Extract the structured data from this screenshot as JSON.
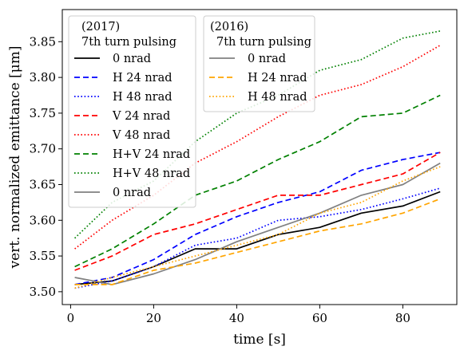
{
  "chart_data": {
    "type": "line",
    "xlabel": "time [s]",
    "ylabel": "vert. normalized emittance [μm]",
    "xlim": [
      -2,
      93
    ],
    "ylim": [
      3.482,
      3.895
    ],
    "xticks": [
      0,
      20,
      40,
      60,
      80
    ],
    "yticks": [
      3.5,
      3.55,
      3.6,
      3.65,
      3.7,
      3.75,
      3.8,
      3.85
    ],
    "grid": false,
    "legends": [
      {
        "title_line1": "(2017)",
        "title_line2": "7th turn pulsing",
        "placement": "top-left"
      },
      {
        "title_line1": "(2016)",
        "title_line2": "7th turn pulsing",
        "placement": "top-center"
      }
    ],
    "series": [
      {
        "name": "0 nrad",
        "group": "2017",
        "color": "#000000",
        "style": "solid",
        "x": [
          1,
          10,
          20,
          30,
          40,
          50,
          60,
          70,
          80,
          89
        ],
        "y": [
          3.51,
          3.515,
          3.535,
          3.56,
          3.56,
          3.58,
          3.59,
          3.61,
          3.62,
          3.64
        ]
      },
      {
        "name": "H 24 nrad",
        "group": "2017",
        "color": "#0000ff",
        "style": "dashed",
        "x": [
          1,
          10,
          20,
          30,
          40,
          50,
          60,
          70,
          80,
          89
        ],
        "y": [
          3.51,
          3.52,
          3.545,
          3.58,
          3.605,
          3.625,
          3.64,
          3.67,
          3.685,
          3.695
        ]
      },
      {
        "name": "H 48 nrad",
        "group": "2017",
        "color": "#0000ff",
        "style": "dotted",
        "x": [
          1,
          10,
          20,
          30,
          40,
          50,
          60,
          70,
          80,
          89
        ],
        "y": [
          3.505,
          3.515,
          3.535,
          3.565,
          3.575,
          3.6,
          3.605,
          3.615,
          3.63,
          3.645
        ]
      },
      {
        "name": "V 24 nrad",
        "group": "2017",
        "color": "#ff0000",
        "style": "dashed",
        "x": [
          1,
          10,
          20,
          30,
          40,
          50,
          60,
          70,
          80,
          89
        ],
        "y": [
          3.53,
          3.55,
          3.58,
          3.595,
          3.615,
          3.635,
          3.635,
          3.65,
          3.665,
          3.695
        ]
      },
      {
        "name": "V 48 nrad",
        "group": "2017",
        "color": "#ff0000",
        "style": "dotted",
        "x": [
          1,
          10,
          20,
          30,
          40,
          50,
          60,
          70,
          80,
          89
        ],
        "y": [
          3.56,
          3.6,
          3.635,
          3.68,
          3.71,
          3.745,
          3.775,
          3.79,
          3.815,
          3.845
        ]
      },
      {
        "name": "H+V 24 nrad",
        "group": "2017",
        "color": "#008000",
        "style": "dashed",
        "x": [
          1,
          10,
          20,
          30,
          40,
          50,
          60,
          70,
          80,
          89
        ],
        "y": [
          3.535,
          3.56,
          3.595,
          3.635,
          3.655,
          3.685,
          3.71,
          3.745,
          3.75,
          3.775
        ]
      },
      {
        "name": "H+V 48 nrad",
        "group": "2017",
        "color": "#008000",
        "style": "dotted",
        "x": [
          1,
          10,
          20,
          30,
          40,
          50,
          60,
          70,
          80,
          89
        ],
        "y": [
          3.575,
          3.625,
          3.655,
          3.71,
          3.75,
          3.775,
          3.81,
          3.825,
          3.855,
          3.865
        ]
      },
      {
        "name": "0 nrad",
        "group": "2017",
        "color": "#808080",
        "style": "solid",
        "x": [
          1,
          10,
          20,
          30,
          40,
          50,
          60,
          70,
          80,
          89
        ],
        "y": [
          3.52,
          3.51,
          3.525,
          3.545,
          3.57,
          3.59,
          3.61,
          3.635,
          3.65,
          3.68
        ]
      },
      {
        "name": "0 nrad",
        "group": "2016",
        "color": "#808080",
        "style": "solid",
        "x": [],
        "y": []
      },
      {
        "name": "H 24 nrad",
        "group": "2016",
        "color": "#ffa500",
        "style": "dashed",
        "x": [
          1,
          10,
          20,
          30,
          40,
          50,
          60,
          70,
          80,
          89
        ],
        "y": [
          3.51,
          3.51,
          3.53,
          3.54,
          3.555,
          3.57,
          3.585,
          3.595,
          3.61,
          3.63
        ]
      },
      {
        "name": "H 48 nrad",
        "group": "2016",
        "color": "#ffa500",
        "style": "dotted",
        "x": [
          1,
          10,
          20,
          30,
          40,
          50,
          60,
          70,
          80,
          89
        ],
        "y": [
          3.505,
          3.52,
          3.535,
          3.55,
          3.565,
          3.58,
          3.61,
          3.625,
          3.655,
          3.675
        ]
      }
    ]
  }
}
